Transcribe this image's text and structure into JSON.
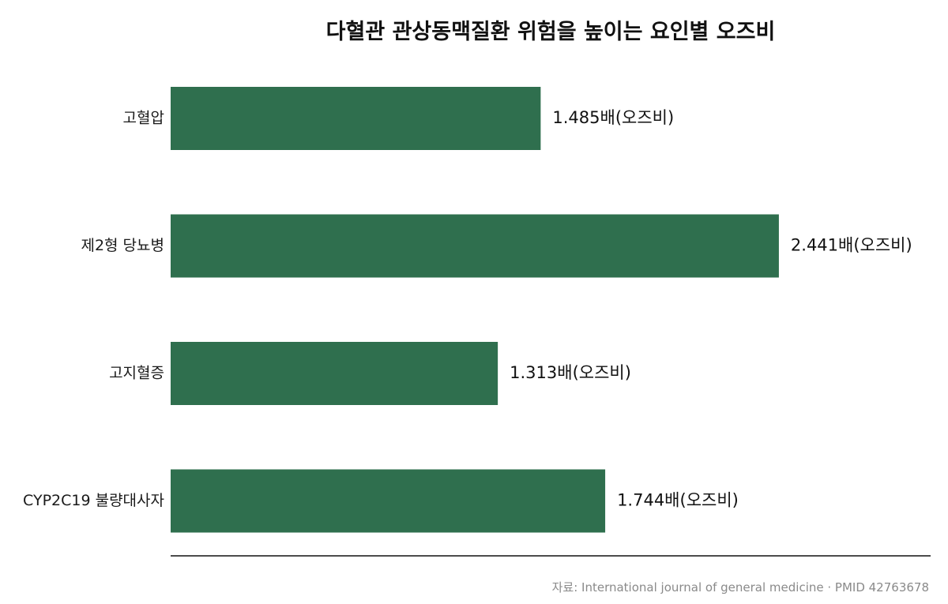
{
  "chart_data": {
    "type": "bar",
    "orientation": "horizontal",
    "title": "다혈관 관상동맥질환 위험을 높이는 요인별 오즈비",
    "categories": [
      "고혈압",
      "제2형 당뇨병",
      "고지혈증",
      "CYP2C19 불량대사자"
    ],
    "values": [
      1.485,
      2.441,
      1.313,
      1.744
    ],
    "value_labels": [
      "1.485배(오즈비)",
      "2.441배(오즈비)",
      "1.313배(오즈비)",
      "1.744배(오즈비)"
    ],
    "xlim": [
      0,
      3.05
    ],
    "grid": false,
    "bar_color": "#2f6f4e",
    "source": "자료: International journal of general medicine · PMID 42763678"
  }
}
